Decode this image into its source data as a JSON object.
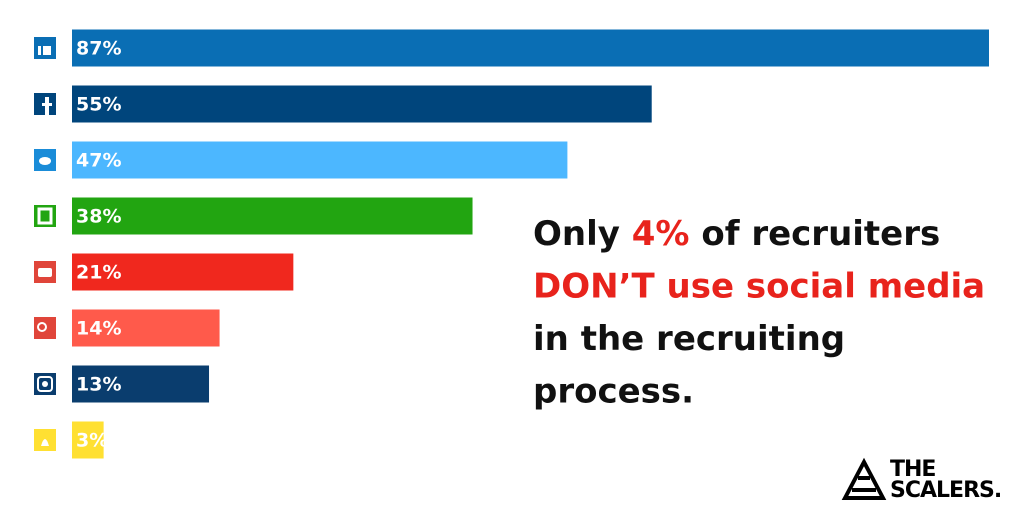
{
  "chart_data": {
    "type": "bar",
    "orientation": "horizontal",
    "values": [
      87,
      55,
      47,
      38,
      21,
      14,
      13,
      3
    ],
    "value_labels": [
      "87%",
      "55%",
      "47%",
      "38%",
      "21%",
      "14%",
      "13%",
      "3%"
    ],
    "colors": [
      "#0a6eb4",
      "#00457c",
      "#4cb7ff",
      "#22a511",
      "#f0281e",
      "#ff5a4b",
      "#0a3d6e",
      "#ffe032"
    ],
    "annotation": [
      [
        {
          "text": "Only ",
          "color": "#111111"
        },
        {
          "text": "4%",
          "color": "#e8231c"
        },
        {
          "text": " of recruiters",
          "color": "#111111"
        }
      ],
      [
        {
          "text": "DON’T use social media",
          "color": "#e8231c"
        }
      ],
      [
        {
          "text": "in the recruiting",
          "color": "#111111"
        }
      ],
      [
        {
          "text": "process.",
          "color": "#111111"
        }
      ]
    ]
  },
  "logo": {
    "line1": "THE",
    "line2": "SCALERS."
  }
}
